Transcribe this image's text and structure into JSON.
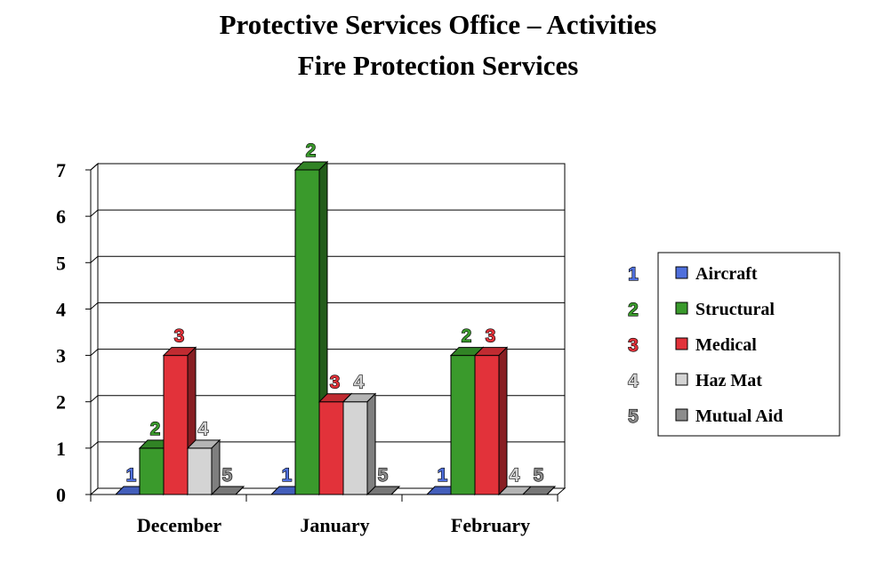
{
  "chart_data": {
    "type": "bar",
    "title": "Protective Services Office – Activities",
    "subtitle": "Fire Protection Services",
    "categories": [
      "December",
      "January",
      "February"
    ],
    "series": [
      {
        "name": "Aircraft",
        "label": "1",
        "color": "#4f6fdc",
        "values": [
          0,
          0,
          0
        ]
      },
      {
        "name": "Structural",
        "label": "2",
        "color": "#3a9a2c",
        "values": [
          1,
          7,
          3
        ]
      },
      {
        "name": "Medical",
        "label": "3",
        "color": "#e2323a",
        "values": [
          3,
          2,
          3
        ]
      },
      {
        "name": "Haz Mat",
        "label": "4",
        "color": "#d4d4d4",
        "values": [
          1,
          2,
          0
        ]
      },
      {
        "name": "Mutual Aid",
        "label": "5",
        "color": "#8c8c8c",
        "values": [
          0,
          0,
          0
        ]
      }
    ],
    "yticks": [
      0,
      1,
      2,
      3,
      4,
      5,
      6,
      7
    ],
    "ylim": [
      0,
      7
    ],
    "grid": true,
    "legend": "right",
    "style": "3d-clustered-bar"
  }
}
